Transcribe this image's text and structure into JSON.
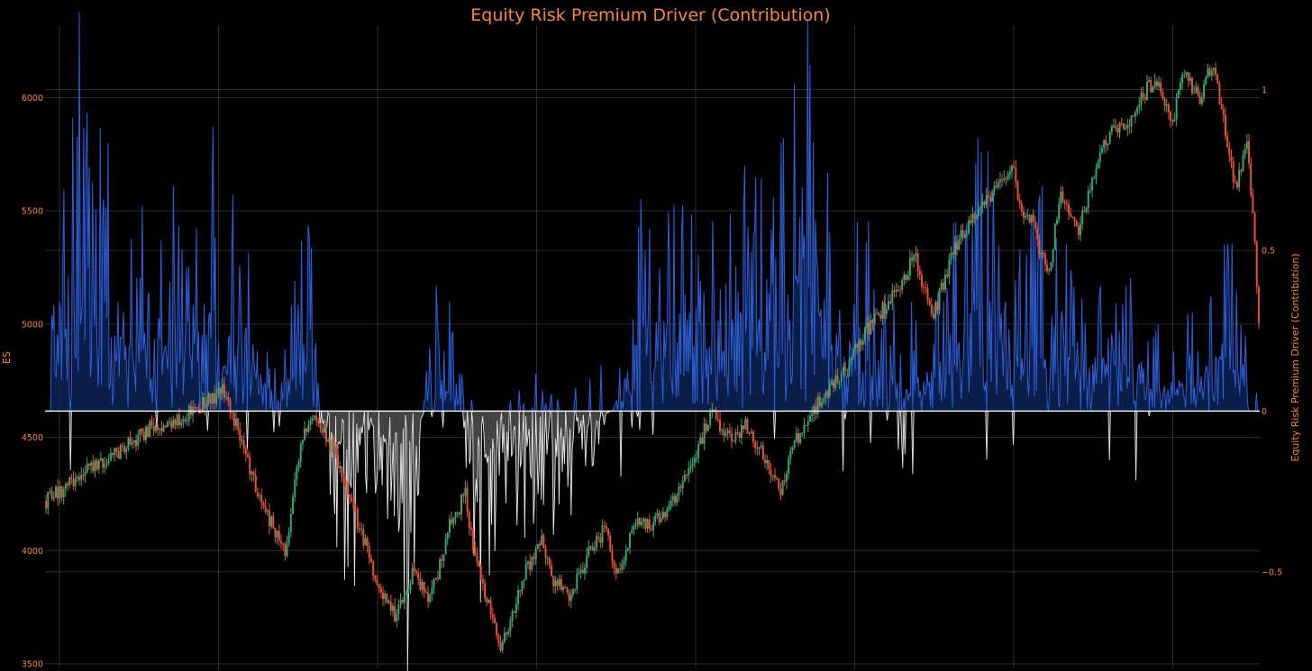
{
  "chart_data": {
    "type": "line",
    "title": "Equity Risk Premium Driver (Contribution)",
    "y_left": {
      "label": "ES",
      "range": [
        3480,
        6320
      ],
      "ticks": [
        3500,
        4000,
        4500,
        5000,
        5500,
        6000
      ],
      "tick_labels": [
        "3500",
        "4000",
        "4500",
        "5000",
        "5500",
        "6000"
      ]
    },
    "y_right": {
      "label": "Equity Risk Premium Driver (Contribution)",
      "range": [
        -0.8,
        1.2
      ],
      "ticks": [
        -0.5,
        0,
        0.5,
        1
      ],
      "tick_labels": [
        "−0.5",
        "0",
        "0.5",
        "1"
      ]
    },
    "x_gridlines": 8,
    "grid": true,
    "colors": {
      "background": "#000000",
      "grid": "#2a2e3a",
      "accent": "#f0883e",
      "positive_line": "#2f5fd6",
      "positive_fill": "#0b2456",
      "negative_line": "#e6e6e6",
      "negative_fill": "#4a4a4a",
      "zero_line": "#ffffff",
      "candle_up": "#3aa676",
      "candle_down": "#e5533d"
    },
    "series": [
      {
        "axis": "left",
        "style": "candlestick",
        "anchors": [
          [
            0,
            4220
          ],
          [
            0.03,
            4330
          ],
          [
            0.06,
            4430
          ],
          [
            0.09,
            4540
          ],
          [
            0.12,
            4600
          ],
          [
            0.15,
            4700
          ],
          [
            0.14,
            4680
          ],
          [
            0.146,
            4790
          ],
          [
            0.165,
            4530
          ],
          [
            0.185,
            4200
          ],
          [
            0.205,
            4000
          ],
          [
            0.22,
            4500
          ],
          [
            0.23,
            4600
          ],
          [
            0.25,
            4400
          ],
          [
            0.27,
            4080
          ],
          [
            0.29,
            3780
          ],
          [
            0.3,
            3700
          ],
          [
            0.315,
            3900
          ],
          [
            0.33,
            3780
          ],
          [
            0.345,
            4100
          ],
          [
            0.36,
            4250
          ],
          [
            0.365,
            4050
          ],
          [
            0.38,
            3750
          ],
          [
            0.39,
            3560
          ],
          [
            0.4,
            3700
          ],
          [
            0.41,
            3900
          ],
          [
            0.425,
            4050
          ],
          [
            0.435,
            3870
          ],
          [
            0.45,
            3800
          ],
          [
            0.465,
            3990
          ],
          [
            0.48,
            4100
          ],
          [
            0.49,
            3880
          ],
          [
            0.505,
            4150
          ],
          [
            0.52,
            4100
          ],
          [
            0.54,
            4250
          ],
          [
            0.555,
            4400
          ],
          [
            0.57,
            4600
          ],
          [
            0.585,
            4500
          ],
          [
            0.6,
            4550
          ],
          [
            0.615,
            4430
          ],
          [
            0.63,
            4250
          ],
          [
            0.64,
            4450
          ],
          [
            0.655,
            4600
          ],
          [
            0.67,
            4700
          ],
          [
            0.685,
            4800
          ],
          [
            0.7,
            4950
          ],
          [
            0.72,
            5080
          ],
          [
            0.735,
            5200
          ],
          [
            0.745,
            5310
          ],
          [
            0.76,
            5020
          ],
          [
            0.78,
            5350
          ],
          [
            0.8,
            5500
          ],
          [
            0.815,
            5600
          ],
          [
            0.83,
            5720
          ],
          [
            0.835,
            5500
          ],
          [
            0.845,
            5450
          ],
          [
            0.86,
            5200
          ],
          [
            0.87,
            5600
          ],
          [
            0.885,
            5400
          ],
          [
            0.9,
            5700
          ],
          [
            0.915,
            5870
          ],
          [
            0.93,
            5900
          ],
          [
            0.945,
            6050
          ],
          [
            0.955,
            6080
          ],
          [
            0.965,
            5870
          ],
          [
            0.975,
            6100
          ],
          [
            0.99,
            6000
          ],
          [
            1.0,
            6150
          ],
          [
            1.01,
            5900
          ],
          [
            1.02,
            5600
          ],
          [
            1.03,
            5800
          ],
          [
            1.035,
            5500
          ],
          [
            1.04,
            5000
          ]
        ]
      },
      {
        "axis": "right",
        "style": "area",
        "peaks": [
          [
            0.005,
            0.62
          ],
          [
            0.015,
            0.55
          ],
          [
            0.03,
            0.9
          ],
          [
            0.04,
            0.72
          ],
          [
            0.07,
            0.45
          ],
          [
            0.1,
            0.4
          ],
          [
            0.125,
            0.56
          ],
          [
            0.135,
            0.72
          ],
          [
            0.16,
            0.45
          ],
          [
            0.2,
            0.05
          ],
          [
            0.225,
            0.45
          ],
          [
            0.24,
            -0.15
          ],
          [
            0.26,
            -0.45
          ],
          [
            0.28,
            -0.15
          ],
          [
            0.3,
            -0.35
          ],
          [
            0.31,
            -0.6
          ],
          [
            0.335,
            0.48
          ],
          [
            0.345,
            0.35
          ],
          [
            0.37,
            -0.45
          ],
          [
            0.39,
            -0.25
          ],
          [
            0.42,
            -0.3
          ],
          [
            0.46,
            -0.2
          ],
          [
            0.5,
            0.12
          ],
          [
            0.51,
            0.6
          ],
          [
            0.525,
            0.5
          ],
          [
            0.55,
            0.55
          ],
          [
            0.58,
            0.32
          ],
          [
            0.6,
            0.58
          ],
          [
            0.62,
            0.48
          ],
          [
            0.635,
            0.62
          ],
          [
            0.645,
            1.02
          ],
          [
            0.66,
            0.92
          ],
          [
            0.675,
            0.4
          ],
          [
            0.7,
            0.55
          ],
          [
            0.73,
            0.15
          ],
          [
            0.76,
            0.25
          ],
          [
            0.8,
            0.6
          ],
          [
            0.815,
            0.7
          ],
          [
            0.83,
            0.3
          ],
          [
            0.86,
            0.55
          ],
          [
            0.875,
            0.38
          ],
          [
            0.9,
            0.3
          ],
          [
            0.94,
            0.25
          ],
          [
            0.96,
            0.15
          ],
          [
            0.99,
            0.2
          ],
          [
            1.01,
            0.4
          ],
          [
            1.02,
            0.3
          ],
          [
            1.03,
            0.12
          ]
        ]
      }
    ]
  }
}
